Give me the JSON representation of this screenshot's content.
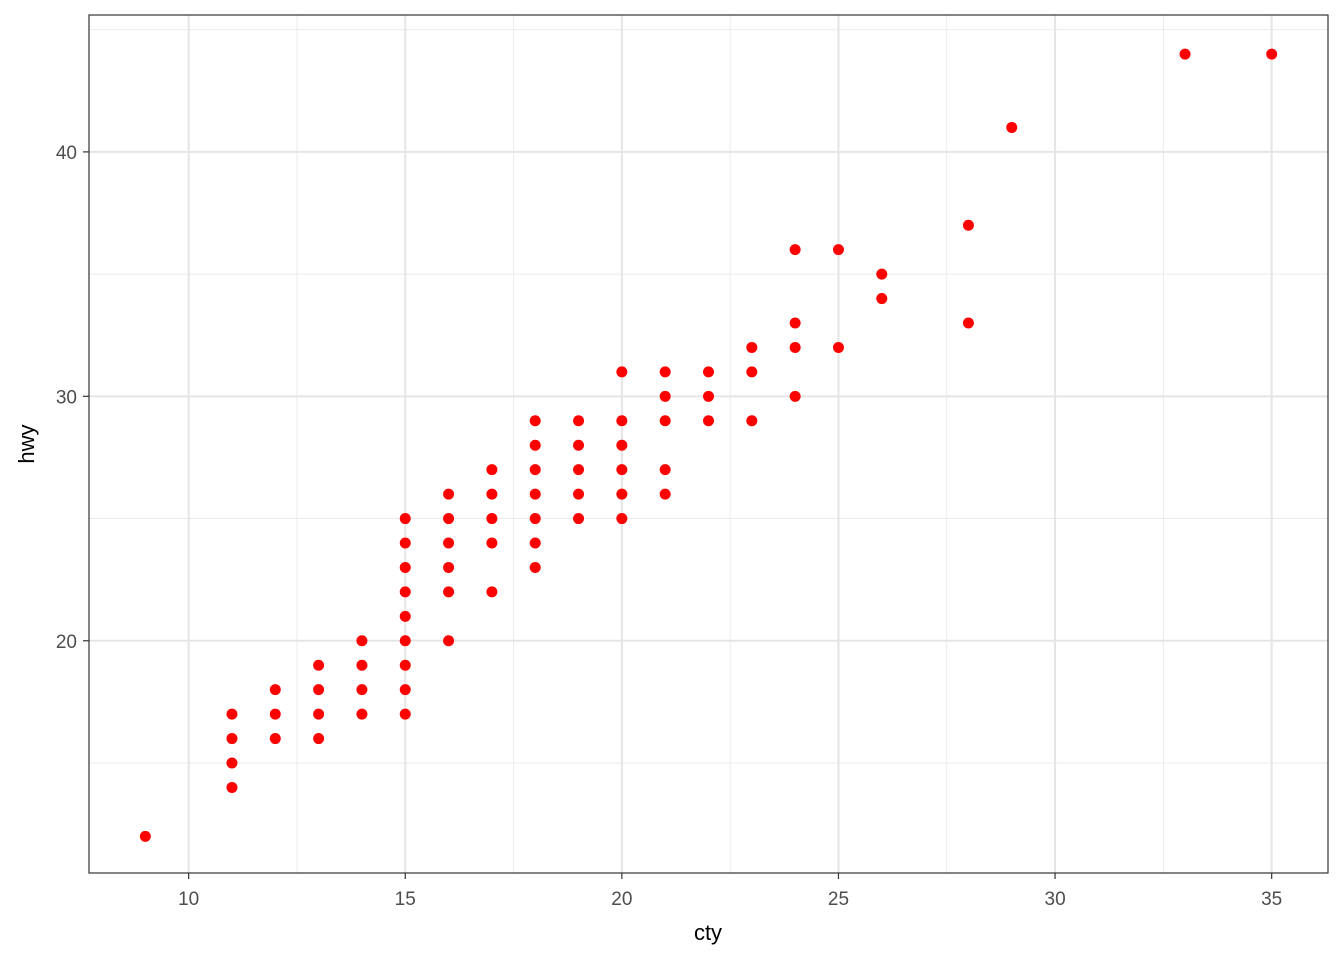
{
  "chart_data": {
    "type": "scatter",
    "xlabel": "cty",
    "ylabel": "hwy",
    "xlim": [
      7.7,
      36.3
    ],
    "ylim": [
      10.5,
      45.6
    ],
    "xticks": [
      10,
      15,
      20,
      25,
      30,
      35
    ],
    "yticks": [
      20,
      30,
      40
    ],
    "grid": true,
    "point_color": "#FF0000",
    "points": [
      [
        9,
        12
      ],
      [
        11,
        17
      ],
      [
        11,
        16
      ],
      [
        11,
        15
      ],
      [
        11,
        14
      ],
      [
        12,
        18
      ],
      [
        12,
        17
      ],
      [
        12,
        16
      ],
      [
        13,
        19
      ],
      [
        13,
        18
      ],
      [
        13,
        17
      ],
      [
        13,
        16
      ],
      [
        14,
        20
      ],
      [
        14,
        19
      ],
      [
        14,
        18
      ],
      [
        14,
        17
      ],
      [
        15,
        25
      ],
      [
        15,
        24
      ],
      [
        15,
        23
      ],
      [
        15,
        22
      ],
      [
        15,
        21
      ],
      [
        15,
        20
      ],
      [
        15,
        19
      ],
      [
        15,
        18
      ],
      [
        15,
        17
      ],
      [
        16,
        26
      ],
      [
        16,
        25
      ],
      [
        16,
        24
      ],
      [
        16,
        23
      ],
      [
        16,
        22
      ],
      [
        16,
        20
      ],
      [
        17,
        27
      ],
      [
        17,
        26
      ],
      [
        17,
        25
      ],
      [
        17,
        24
      ],
      [
        17,
        22
      ],
      [
        18,
        29
      ],
      [
        18,
        28
      ],
      [
        18,
        27
      ],
      [
        18,
        26
      ],
      [
        18,
        25
      ],
      [
        18,
        24
      ],
      [
        18,
        23
      ],
      [
        19,
        29
      ],
      [
        19,
        28
      ],
      [
        19,
        27
      ],
      [
        19,
        26
      ],
      [
        19,
        25
      ],
      [
        20,
        31
      ],
      [
        20,
        29
      ],
      [
        20,
        28
      ],
      [
        20,
        27
      ],
      [
        20,
        26
      ],
      [
        20,
        25
      ],
      [
        21,
        31
      ],
      [
        21,
        30
      ],
      [
        21,
        29
      ],
      [
        21,
        27
      ],
      [
        21,
        26
      ],
      [
        22,
        31
      ],
      [
        22,
        30
      ],
      [
        22,
        29
      ],
      [
        23,
        32
      ],
      [
        23,
        31
      ],
      [
        23,
        29
      ],
      [
        24,
        36
      ],
      [
        24,
        33
      ],
      [
        24,
        32
      ],
      [
        24,
        30
      ],
      [
        25,
        36
      ],
      [
        25,
        32
      ],
      [
        26,
        35
      ],
      [
        26,
        34
      ],
      [
        28,
        37
      ],
      [
        28,
        33
      ],
      [
        29,
        41
      ],
      [
        33,
        44
      ],
      [
        35,
        44
      ]
    ]
  }
}
